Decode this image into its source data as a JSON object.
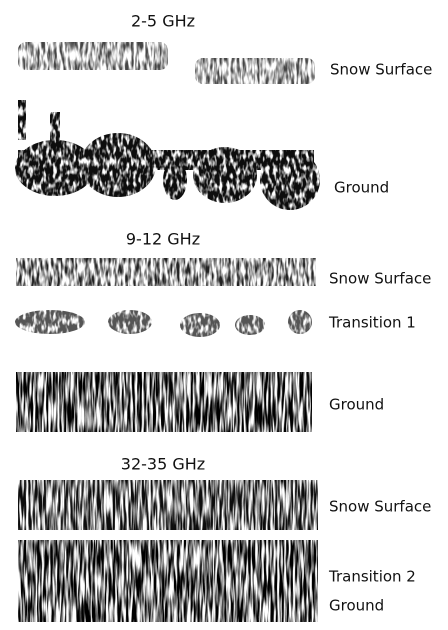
{
  "panels": [
    {
      "title": "2-5 GHz",
      "labels": [
        "Snow Surface",
        "Ground"
      ]
    },
    {
      "title": "9-12 GHz",
      "labels": [
        "Snow Surface",
        "Transition 1",
        "Ground"
      ]
    },
    {
      "title": "32-35 GHz",
      "labels": [
        "Snow Surface",
        "Transition 2",
        "Ground"
      ]
    }
  ]
}
